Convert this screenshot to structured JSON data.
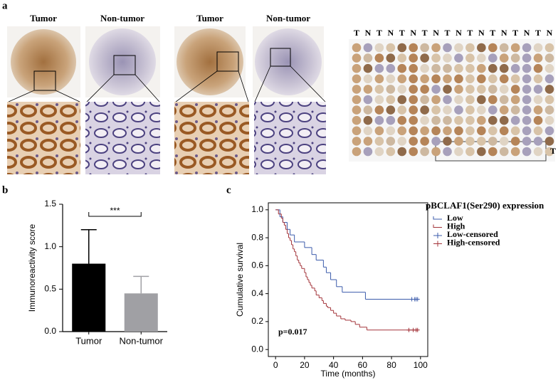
{
  "panel_a": {
    "label": "a",
    "image_labels": [
      "Tumor",
      "Non-tumor",
      "Tumor",
      "Non-tumor"
    ],
    "tma_columns": [
      "T",
      "N",
      "T",
      "N",
      "T",
      "N",
      "T",
      "N",
      "T",
      "N",
      "T",
      "N",
      "T",
      "N",
      "T",
      "N",
      "T",
      "N"
    ],
    "tma_box_label": "T"
  },
  "chart_data": [
    {
      "type": "bar",
      "panel_label": "b",
      "ylabel": "Immunoreactivity score",
      "categories": [
        "Tumor",
        "Non-tumor"
      ],
      "values": [
        0.8,
        0.45
      ],
      "errors": [
        0.4,
        0.2
      ],
      "colors": [
        "#000000",
        "#a0a0a4"
      ],
      "ylim": [
        0,
        1.5
      ],
      "yticks": [
        {
          "value": 0,
          "label": "0.0"
        },
        0.5,
        {
          "value": 1,
          "label": "1.0"
        },
        1.5
      ],
      "annotation": "***"
    },
    {
      "type": "step",
      "panel_label": "c",
      "xlabel": "Time (months)",
      "ylabel": "Cumulative survival",
      "legend_title": "pBCLAF1(Ser290) expression",
      "annotation": "p=0.017",
      "xlim": [
        -5,
        105
      ],
      "xticks": [
        0,
        20,
        40,
        60,
        80,
        100
      ],
      "ylim": [
        -0.05,
        1.05
      ],
      "yticks": [
        {
          "value": 0,
          "label": "0.0"
        },
        0.2,
        0.4,
        0.6,
        0.8,
        {
          "value": 1,
          "label": "1.0"
        }
      ],
      "series": [
        {
          "name": "Low",
          "color": "#3b5bab",
          "x": [
            0,
            3,
            5,
            8,
            10,
            13,
            20,
            25,
            28,
            33,
            35,
            38,
            42,
            46,
            62,
            98
          ],
          "values": [
            1,
            0.95,
            0.91,
            0.86,
            0.82,
            0.77,
            0.73,
            0.68,
            0.64,
            0.59,
            0.55,
            0.5,
            0.45,
            0.41,
            0.36,
            0.36
          ]
        },
        {
          "name": "High",
          "color": "#a3343a",
          "x": [
            0,
            2,
            4,
            5,
            6,
            7,
            8,
            9,
            10,
            11,
            12,
            13,
            14,
            15,
            16,
            17,
            18,
            20,
            21,
            22,
            23,
            24,
            25,
            27,
            28,
            30,
            32,
            33,
            35,
            36,
            38,
            40,
            42,
            45,
            48,
            52,
            55,
            58,
            63,
            98
          ],
          "values": [
            1,
            0.97,
            0.94,
            0.91,
            0.89,
            0.86,
            0.83,
            0.8,
            0.78,
            0.75,
            0.72,
            0.7,
            0.67,
            0.64,
            0.62,
            0.6,
            0.58,
            0.55,
            0.52,
            0.5,
            0.48,
            0.46,
            0.44,
            0.42,
            0.39,
            0.37,
            0.35,
            0.33,
            0.31,
            0.3,
            0.28,
            0.26,
            0.24,
            0.22,
            0.21,
            0.2,
            0.18,
            0.16,
            0.14,
            0.14
          ]
        },
        {
          "name": "Low-censored",
          "color": "#3b5bab",
          "censored": true,
          "x": [
            94,
            96,
            97,
            98
          ],
          "values": [
            0.36,
            0.36,
            0.36,
            0.36
          ]
        },
        {
          "name": "High-censored",
          "color": "#a3343a",
          "censored": true,
          "x": [
            92,
            95,
            97,
            98
          ],
          "values": [
            0.14,
            0.14,
            0.14,
            0.14
          ]
        }
      ]
    }
  ]
}
